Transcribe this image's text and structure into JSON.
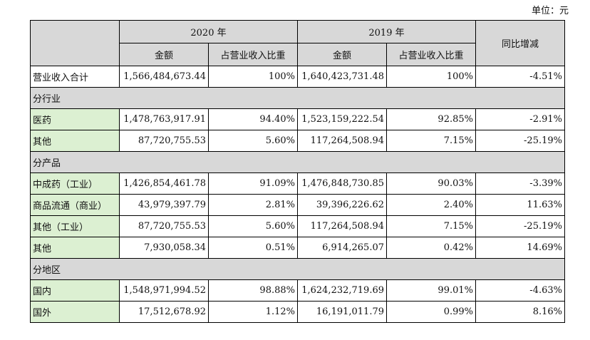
{
  "unit_label": "单位：元",
  "header": {
    "year_2020": "2020 年",
    "year_2019": "2019 年",
    "yoy": "同比增减",
    "amount": "金额",
    "share": "占营业收入比重"
  },
  "rows": {
    "total": {
      "label": "营业收入合计",
      "amt2020": "1,566,484,673.44",
      "pct2020": "100%",
      "amt2019": "1,640,423,731.48",
      "pct2019": "100%",
      "yoy": "-4.51%"
    },
    "sec_ind": {
      "label": "分行业"
    },
    "medicine": {
      "label": "医药",
      "amt2020": "1,478,763,917.91",
      "pct2020": "94.40%",
      "amt2019": "1,523,159,222.54",
      "pct2019": "92.85%",
      "yoy": "-2.91%"
    },
    "other_ind": {
      "label": "其他",
      "amt2020": "87,720,755.53",
      "pct2020": "5.60%",
      "amt2019": "117,264,508.94",
      "pct2019": "7.15%",
      "yoy": "-25.19%"
    },
    "sec_prod": {
      "label": "分产品"
    },
    "tcm": {
      "label": "中成药（工业）",
      "amt2020": "1,426,854,461.78",
      "pct2020": "91.09%",
      "amt2019": "1,476,848,730.85",
      "pct2019": "90.03%",
      "yoy": "-3.39%"
    },
    "commerce": {
      "label": "商品流通（商业）",
      "amt2020": "43,979,397.79",
      "pct2020": "2.81%",
      "amt2019": "39,396,226.62",
      "pct2019": "2.40%",
      "yoy": "11.63%"
    },
    "other_indus": {
      "label": "其他（工业）",
      "amt2020": "87,720,755.53",
      "pct2020": "5.60%",
      "amt2019": "117,264,508.94",
      "pct2019": "7.15%",
      "yoy": "-25.19%"
    },
    "other_prod": {
      "label": "其他",
      "amt2020": "7,930,058.34",
      "pct2020": "0.51%",
      "amt2019": "6,914,265.07",
      "pct2019": "0.42%",
      "yoy": "14.69%"
    },
    "sec_region": {
      "label": "分地区"
    },
    "domestic": {
      "label": "国内",
      "amt2020": "1,548,971,994.52",
      "pct2020": "98.88%",
      "amt2019": "1,624,232,719.69",
      "pct2019": "99.01%",
      "yoy": "-4.63%"
    },
    "overseas": {
      "label": "国外",
      "amt2020": "17,512,678.92",
      "pct2020": "1.12%",
      "amt2019": "16,191,011.79",
      "pct2019": "0.99%",
      "yoy": "8.16%"
    }
  }
}
